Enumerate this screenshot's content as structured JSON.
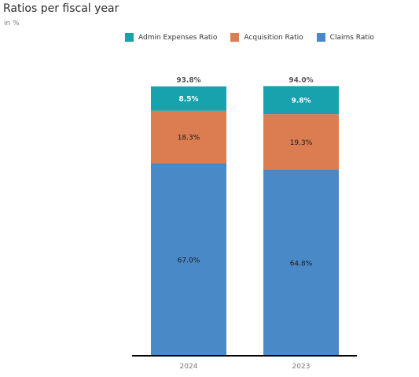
{
  "title": "Ratios per fiscal year",
  "subtitle": "in %",
  "colors": {
    "admin": "#17a2ae",
    "acquisition": "#dc7c51",
    "claims": "#4a89c8",
    "axis": "#000000",
    "total_label": "#555555",
    "tick_label": "#7a7a7a"
  },
  "legend": [
    {
      "name": "Admin Expenses Ratio",
      "color": "#17a2ae"
    },
    {
      "name": "Acquisition Ratio",
      "color": "#dc7c51"
    },
    {
      "name": "Claims Ratio",
      "color": "#4a89c8"
    }
  ],
  "chart_data": {
    "type": "bar",
    "stacked": true,
    "categories": [
      "2024",
      "2023"
    ],
    "series": [
      {
        "name": "Claims Ratio",
        "values": [
          67.0,
          64.8
        ],
        "labels": [
          "67.0%",
          "64.8%"
        ],
        "color": "#4a89c8",
        "label_color": "#1a1a1a"
      },
      {
        "name": "Acquisition Ratio",
        "values": [
          18.3,
          19.3
        ],
        "labels": [
          "18.3%",
          "19.3%"
        ],
        "color": "#dc7c51",
        "label_color": "#1a1a1a"
      },
      {
        "name": "Admin Expenses Ratio",
        "values": [
          8.5,
          9.8
        ],
        "labels": [
          "8.5%",
          "9.8%"
        ],
        "color": "#17a2ae",
        "label_color": "#ffffff"
      }
    ],
    "totals": [
      93.8,
      94.0
    ],
    "total_labels": [
      "93.8%",
      "94.0%"
    ],
    "ylim": [
      0,
      94.0
    ],
    "grid": false,
    "legend_position": "top"
  }
}
